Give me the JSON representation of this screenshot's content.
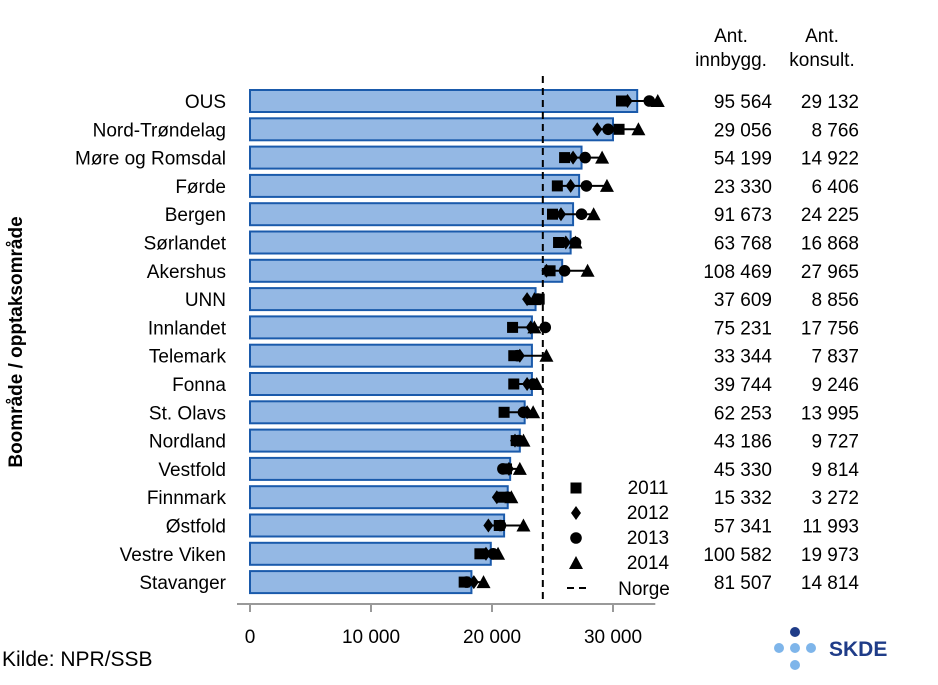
{
  "chart_data": {
    "type": "bar",
    "ylabel": "Boområde / opptaksområde",
    "xlabel": "",
    "xlim": [
      0,
      33000
    ],
    "x_ticks": [
      0,
      10000,
      20000,
      30000
    ],
    "x_tick_labels": [
      "0",
      "10 000",
      "20 000",
      "30 000"
    ],
    "categories": [
      "OUS",
      "Nord-Trøndelag",
      "Møre og Romsdal",
      "Førde",
      "Bergen",
      "Sørlandet",
      "Akershus",
      "UNN",
      "Innlandet",
      "Telemark",
      "Fonna",
      "St. Olavs",
      "Nordland",
      "Vestfold",
      "Finnmark",
      "Østfold",
      "Vestre Viken",
      "Stavanger"
    ],
    "values": [
      32000,
      30000,
      27400,
      27200,
      26700,
      26500,
      25800,
      23600,
      23300,
      23300,
      23300,
      22700,
      22300,
      21500,
      21300,
      21000,
      19900,
      18300
    ],
    "norge": 24200,
    "series": [
      {
        "name": "2011",
        "marker": "square",
        "values": [
          30700,
          30500,
          26000,
          25400,
          25000,
          25500,
          24800,
          23900,
          21700,
          21800,
          21800,
          21000,
          22000,
          21200,
          20800,
          20600,
          19000,
          17700
        ]
      },
      {
        "name": "2012",
        "marker": "diamond",
        "values": [
          31200,
          28700,
          26700,
          26500,
          25700,
          26100,
          24500,
          22900,
          23200,
          22300,
          22900,
          22900,
          21900,
          21400,
          20400,
          19700,
          19500,
          18500
        ]
      },
      {
        "name": "2013",
        "marker": "circle",
        "values": [
          33000,
          29600,
          27700,
          27800,
          27400,
          26900,
          26000,
          23800,
          24400,
          22100,
          23400,
          22600,
          22200,
          20900,
          21300,
          20700,
          20100,
          17900
        ]
      },
      {
        "name": "2014",
        "marker": "triangle",
        "values": [
          33700,
          32100,
          29100,
          29500,
          28400,
          26900,
          27900,
          23500,
          23500,
          24500,
          23700,
          23400,
          22600,
          22300,
          21600,
          22600,
          20500,
          19300
        ]
      }
    ],
    "table_headers": {
      "innbygg": [
        "Ant.",
        "innbygg."
      ],
      "konsult": [
        "Ant.",
        "konsult."
      ]
    },
    "innbyggere": [
      "95 564",
      "29 056",
      "54 199",
      "23 330",
      "91 673",
      "63 768",
      "108 469",
      "37 609",
      "75 231",
      "33 344",
      "39 744",
      "62 253",
      "43 186",
      "45 330",
      "15 332",
      "57 341",
      "100 582",
      "81 507"
    ],
    "konsultasjoner": [
      "29 132",
      "8 766",
      "14 922",
      "6 406",
      "24 225",
      "16 868",
      "27 965",
      "8 856",
      "17 756",
      "7 837",
      "9 246",
      "13 995",
      "9 727",
      "9 814",
      "3 272",
      "11 993",
      "19 973",
      "14 814"
    ],
    "legend": {
      "placement": "bottom-right",
      "norge_label": "Norge"
    },
    "grid": false
  },
  "source": "Kilde: NPR/SSB",
  "logo_text": "SKDE",
  "colors": {
    "bar_fill": "#94b8e4",
    "bar_stroke": "#1a5aab",
    "logo_navy": "#1f3c88",
    "logo_light": "#7eb5ea"
  }
}
